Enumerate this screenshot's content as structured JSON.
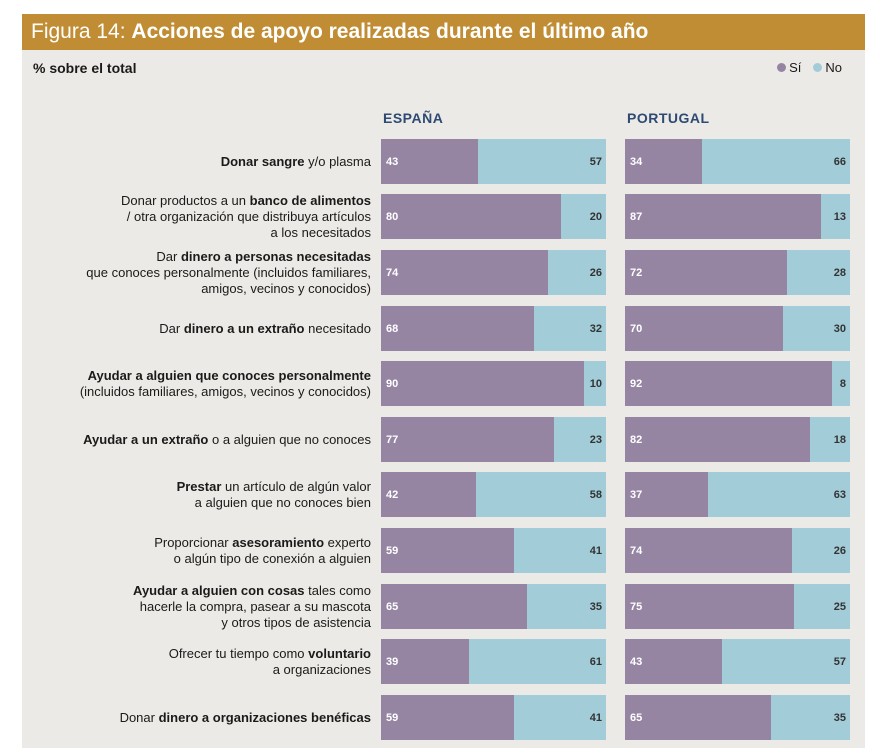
{
  "header": {
    "figure_label": "Figura 14:",
    "title": "Acciones de apoyo realizadas durante el último año"
  },
  "subtitle": "% sobre el total",
  "legend": [
    {
      "label": "Sí",
      "color": "#9585A3"
    },
    {
      "label": "No",
      "color": "#A3CCD9"
    }
  ],
  "colors": {
    "header_bg": "#C08D34",
    "panel_bg": "#ECEAE6",
    "yes": "#9585A3",
    "no": "#A3CCD9",
    "column_header": "#2E4A73"
  },
  "columns": [
    "ESPAÑA",
    "PORTUGAL"
  ],
  "rows": [
    {
      "label_parts": [
        [
          {
            "t": "Donar sangre",
            "b": true
          },
          {
            "t": " y/o plasma",
            "b": false
          }
        ]
      ]
    },
    {
      "label_parts": [
        [
          {
            "t": "Donar productos a un ",
            "b": false
          },
          {
            "t": "banco de alimentos",
            "b": true
          }
        ],
        [
          {
            "t": "/ otra organización que distribuya artículos",
            "b": false
          }
        ],
        [
          {
            "t": "a los necesitados",
            "b": false
          }
        ]
      ]
    },
    {
      "label_parts": [
        [
          {
            "t": "Dar ",
            "b": false
          },
          {
            "t": "dinero a personas necesitadas",
            "b": true
          }
        ],
        [
          {
            "t": "que conoces personalmente (incluidos familiares,",
            "b": false
          }
        ],
        [
          {
            "t": "amigos, vecinos y conocidos)",
            "b": false
          }
        ]
      ]
    },
    {
      "label_parts": [
        [
          {
            "t": "Dar ",
            "b": false
          },
          {
            "t": "dinero a un extraño",
            "b": true
          },
          {
            "t": " necesitado",
            "b": false
          }
        ]
      ]
    },
    {
      "label_parts": [
        [
          {
            "t": "Ayudar a alguien que conoces personalmente",
            "b": true
          }
        ],
        [
          {
            "t": "(incluidos familiares, amigos, vecinos y conocidos)",
            "b": false
          }
        ]
      ]
    },
    {
      "label_parts": [
        [
          {
            "t": "Ayudar a un extraño",
            "b": true
          },
          {
            "t": " o a alguien que no conoces",
            "b": false
          }
        ]
      ]
    },
    {
      "label_parts": [
        [
          {
            "t": "Prestar",
            "b": true
          },
          {
            "t": " un artículo de algún valor",
            "b": false
          }
        ],
        [
          {
            "t": "a alguien que no conoces bien",
            "b": false
          }
        ]
      ]
    },
    {
      "label_parts": [
        [
          {
            "t": "Proporcionar ",
            "b": false
          },
          {
            "t": "asesoramiento",
            "b": true
          },
          {
            "t": " experto",
            "b": false
          }
        ],
        [
          {
            "t": "o algún tipo de conexión a alguien",
            "b": false
          }
        ]
      ]
    },
    {
      "label_parts": [
        [
          {
            "t": "Ayudar a alguien con cosas",
            "b": true
          },
          {
            "t": " tales como",
            "b": false
          }
        ],
        [
          {
            "t": "hacerle la compra, pasear a su mascota",
            "b": false
          }
        ],
        [
          {
            "t": "y otros tipos de asistencia",
            "b": false
          }
        ]
      ]
    },
    {
      "label_parts": [
        [
          {
            "t": "Ofrecer tu tiempo como ",
            "b": false
          },
          {
            "t": "voluntario",
            "b": true
          }
        ],
        [
          {
            "t": "a organizaciones",
            "b": false
          }
        ]
      ]
    },
    {
      "label_parts": [
        [
          {
            "t": "Donar ",
            "b": false
          },
          {
            "t": "dinero a organizaciones benéficas",
            "b": true
          }
        ]
      ]
    }
  ],
  "chart_data": {
    "type": "bar",
    "subtype": "stacked-horizontal-100",
    "title": "Figura 14: Acciones de apoyo realizadas durante el último año",
    "ylabel": "% sobre el total",
    "xlim": [
      0,
      100
    ],
    "legend_position": "top-right",
    "grid": false,
    "categories": [
      "Donar sangre y/o plasma",
      "Donar productos a un banco de alimentos / otra organización que distribuya artículos a los necesitados",
      "Dar dinero a personas necesitadas que conoces personalmente (incluidos familiares, amigos, vecinos y conocidos)",
      "Dar dinero a un extraño necesitado",
      "Ayudar a alguien que conoces personalmente (incluidos familiares, amigos, vecinos y conocidos)",
      "Ayudar a un extraño o a alguien que no conoces",
      "Prestar un artículo de algún valor a alguien que no conoces bien",
      "Proporcionar asesoramiento experto o algún tipo de conexión a alguien",
      "Ayudar a alguien con cosas tales como hacerle la compra, pasear a su mascota y otros tipos de asistencia",
      "Ofrecer tu tiempo como voluntario a organizaciones",
      "Donar dinero a organizaciones benéficas"
    ],
    "panels": [
      {
        "name": "ESPAÑA",
        "series": [
          {
            "name": "Sí",
            "values": [
              43,
              80,
              74,
              68,
              90,
              77,
              42,
              59,
              65,
              39,
              59
            ]
          },
          {
            "name": "No",
            "values": [
              57,
              20,
              26,
              32,
              10,
              23,
              58,
              41,
              35,
              61,
              41
            ]
          }
        ]
      },
      {
        "name": "PORTUGAL",
        "series": [
          {
            "name": "Sí",
            "values": [
              34,
              87,
              72,
              70,
              92,
              82,
              37,
              74,
              75,
              43,
              65
            ]
          },
          {
            "name": "No",
            "values": [
              66,
              13,
              28,
              30,
              8,
              18,
              63,
              26,
              25,
              57,
              35
            ]
          }
        ]
      }
    ]
  }
}
